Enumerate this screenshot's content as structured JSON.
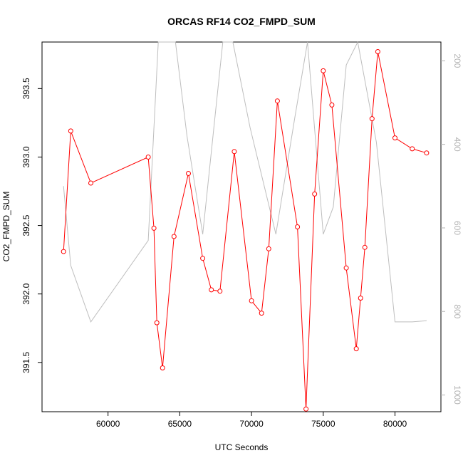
{
  "chart_data": {
    "type": "line",
    "title": "ORCAS RF14 CO2_FMPD_SUM",
    "xlabel": "UTC Seconds",
    "ylabel": "CO2_FMPD_SUM",
    "xlim": [
      55400,
      83200
    ],
    "ylim": [
      391.14,
      393.84
    ],
    "y2lim": [
      1040,
      155
    ],
    "y2_reversed": true,
    "x_ticks": [
      60000,
      65000,
      70000,
      75000,
      80000
    ],
    "y_ticks": [
      391.5,
      392.0,
      392.5,
      393.0,
      393.5
    ],
    "y2_ticks": [
      200,
      400,
      600,
      800,
      1000
    ],
    "grid": false,
    "legend": "none",
    "colors": {
      "primary": "#ff0000",
      "secondary": "#bebebe",
      "axis": "#000000",
      "right_axis": "#b3b3b3"
    },
    "series": [
      {
        "axis": "left",
        "color": "#ff0000",
        "marker": "open-circle",
        "points": [
          [
            56900,
            392.31
          ],
          [
            57400,
            393.19
          ],
          [
            58800,
            392.81
          ],
          [
            62800,
            393.0
          ],
          [
            63200,
            392.48
          ],
          [
            63400,
            391.79
          ],
          [
            63800,
            391.46
          ],
          [
            64600,
            392.42
          ],
          [
            65600,
            392.88
          ],
          [
            66600,
            392.26
          ],
          [
            67200,
            392.03
          ],
          [
            67800,
            392.02
          ],
          [
            68800,
            393.04
          ],
          [
            70000,
            391.95
          ],
          [
            70700,
            391.86
          ],
          [
            71200,
            392.33
          ],
          [
            71800,
            393.41
          ],
          [
            73200,
            392.49
          ],
          [
            73800,
            391.16
          ],
          [
            74400,
            392.73
          ],
          [
            75000,
            393.63
          ],
          [
            75600,
            393.38
          ],
          [
            76600,
            392.19
          ],
          [
            77300,
            391.6
          ],
          [
            77600,
            391.97
          ],
          [
            77900,
            392.34
          ],
          [
            78400,
            393.28
          ],
          [
            78800,
            393.77
          ],
          [
            80000,
            393.14
          ],
          [
            81200,
            393.06
          ],
          [
            82200,
            393.03
          ]
        ]
      },
      {
        "axis": "right",
        "color": "#bebebe",
        "marker": "none",
        "points": [
          [
            56900,
            500
          ],
          [
            57400,
            690
          ],
          [
            58800,
            825
          ],
          [
            62800,
            630
          ],
          [
            63500,
            155
          ],
          [
            64700,
            130
          ],
          [
            65500,
            380
          ],
          [
            66600,
            615
          ],
          [
            68000,
            155
          ],
          [
            68700,
            155
          ],
          [
            69900,
            360
          ],
          [
            71700,
            615
          ],
          [
            73000,
            340
          ],
          [
            73900,
            155
          ],
          [
            75000,
            615
          ],
          [
            75700,
            550
          ],
          [
            76600,
            210
          ],
          [
            77400,
            155
          ],
          [
            78700,
            395
          ],
          [
            80000,
            825
          ],
          [
            81200,
            825
          ],
          [
            82200,
            822
          ]
        ]
      }
    ]
  }
}
